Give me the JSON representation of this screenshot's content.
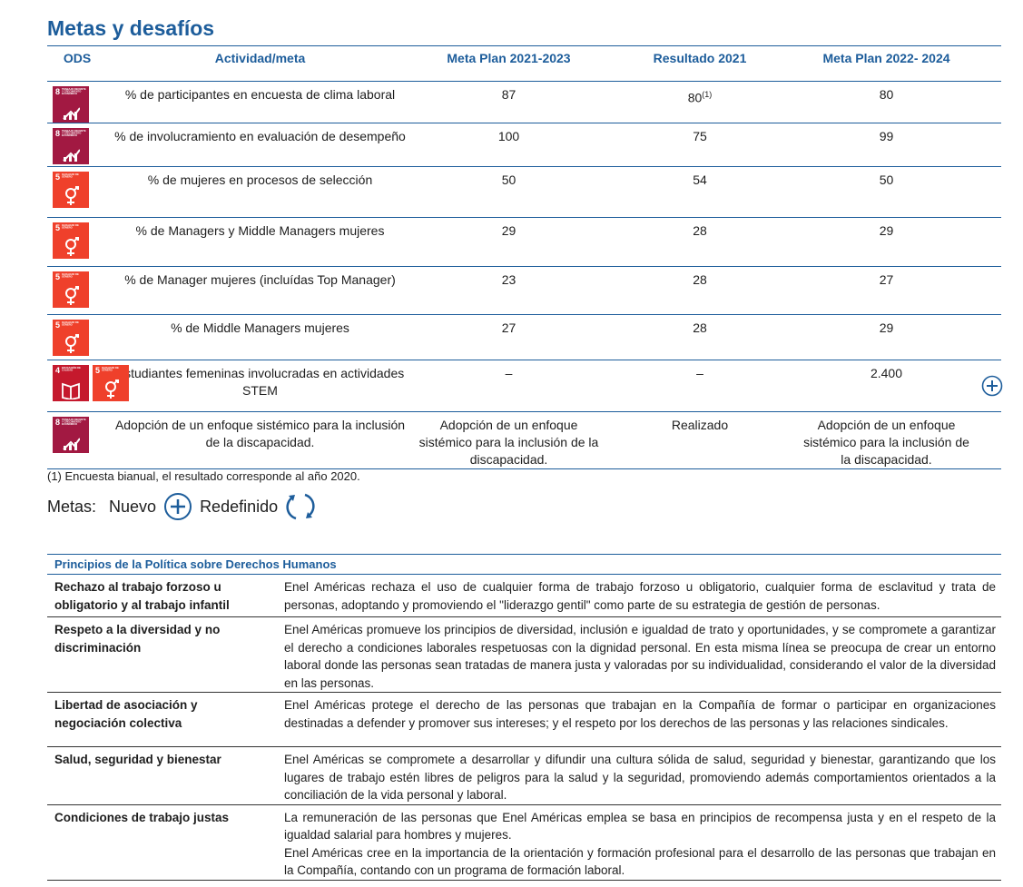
{
  "title": "Metas y desafíos",
  "goals_table": {
    "headers": [
      "ODS",
      "Actividad/meta",
      "Meta Plan 2021-2023",
      "Resultado 2021",
      "Meta Plan 2022- 2024"
    ],
    "rows": [
      {
        "ods": [
          {
            "number": "8",
            "label": "TRABAJO DECENTE Y CRECIMIENTO ECONÓMICO",
            "color": "#a21942"
          }
        ],
        "activity": "% de participantes en encuesta de clima laboral",
        "plan_2021_2023": "87",
        "result_2021": "80",
        "result_note": "(1)",
        "plan_2022_2024": "80",
        "is_new": false
      },
      {
        "ods": [
          {
            "number": "8",
            "label": "TRABAJO DECENTE Y CRECIMIENTO ECONÓMICO",
            "color": "#a21942"
          }
        ],
        "activity": "% de involucramiento en evaluación de desempeño",
        "plan_2021_2023": "100",
        "result_2021": "75",
        "plan_2022_2024": "99",
        "is_new": false
      },
      {
        "ods": [
          {
            "number": "5",
            "label": "IGUALDAD DE GÉNERO",
            "color": "#ef402b"
          }
        ],
        "activity": "% de mujeres en procesos de selección",
        "plan_2021_2023": "50",
        "result_2021": "54",
        "plan_2022_2024": "50",
        "is_new": false
      },
      {
        "ods": [
          {
            "number": "5",
            "label": "IGUALDAD DE GÉNERO",
            "color": "#ef402b"
          }
        ],
        "activity": "% de Managers y Middle Managers mujeres",
        "plan_2021_2023": "29",
        "result_2021": "28",
        "plan_2022_2024": "29",
        "is_new": false
      },
      {
        "ods": [
          {
            "number": "5",
            "label": "IGUALDAD DE GÉNERO",
            "color": "#ef402b"
          }
        ],
        "activity": "% de Manager mujeres (incluídas Top Manager)",
        "plan_2021_2023": "23",
        "result_2021": "28",
        "plan_2022_2024": "27",
        "is_new": false
      },
      {
        "ods": [
          {
            "number": "5",
            "label": "IGUALDAD DE GÉNERO",
            "color": "#ef402b"
          }
        ],
        "activity": "% de Middle Managers mujeres",
        "plan_2021_2023": "27",
        "result_2021": "28",
        "plan_2022_2024": "29",
        "is_new": false
      },
      {
        "ods": [
          {
            "number": "4",
            "label": "EDUCACIÓN DE CALIDAD",
            "color": "#c5192d"
          },
          {
            "number": "5",
            "label": "IGUALDAD DE GÉNERO",
            "color": "#ef402b"
          }
        ],
        "activity": "Estudiantes femeninas involucradas en actividades STEM",
        "plan_2021_2023": "–",
        "result_2021": "–",
        "plan_2022_2024": "2.400",
        "is_new": true
      },
      {
        "ods": [
          {
            "number": "8",
            "label": "TRABAJO DECENTE Y CRECIMIENTO ECONÓMICO",
            "color": "#a21942"
          }
        ],
        "activity": "Adopción de un enfoque sistémico para la inclusión de la discapacidad.",
        "plan_2021_2023": "Adopción de un enfoque sistémico para la inclusión de la discapacidad.",
        "result_2021": "Realizado",
        "plan_2022_2024": "Adopción de un enfoque sistémico para la inclusión de la discapacidad.",
        "is_new": false
      }
    ]
  },
  "footnote": "(1) Encuesta bianual, el resultado corresponde al año 2020.",
  "legend": {
    "label": "Metas:",
    "new": "Nuevo",
    "redefined": "Redefinido"
  },
  "principles_table": {
    "header": "Principios de la Política sobre Derechos Humanos",
    "rows": [
      {
        "name": "Rechazo al trabajo forzoso u obligatorio y al trabajo infantil",
        "description": [
          "Enel Américas rechaza el uso de cualquier forma de trabajo forzoso u obligatorio, cualquier forma de esclavitud y trata de personas, adoptando y promoviendo el \"liderazgo gentil\" como parte de su estrategia de gestión de personas."
        ]
      },
      {
        "name": "Respeto a la diversidad y no discriminación",
        "description": [
          "Enel Américas promueve los principios de diversidad, inclusión e igualdad de trato y oportunidades, y se compromete a garantizar el derecho a condiciones laborales respetuosas con la dignidad personal. En esta misma línea se preocupa de crear un entorno laboral donde las personas sean tratadas de manera justa y valoradas por su individualidad, considerando el valor de la diversidad en las personas."
        ]
      },
      {
        "name": "Libertad de asociación y negociación colectiva",
        "description": [
          "Enel Américas protege el derecho de las personas que trabajan en la Compañía de formar o participar en organizaciones destinadas a defender y promover sus intereses; y el respeto por los derechos de las personas y las relaciones sindicales."
        ]
      },
      {
        "name": "Salud, seguridad y bienestar",
        "description": [
          "Enel Américas se compromete a desarrollar y difundir una cultura sólida de salud, seguridad y bienestar, garantizando que los lugares de trabajo estén libres de peligros para la salud y la seguridad, promoviendo además comportamientos orientados a la conciliación de la vida personal y laboral."
        ]
      },
      {
        "name": "Condiciones de trabajo justas",
        "description": [
          "La remuneración de las personas que Enel Américas emplea se basa en principios de recompensa justa y en el respeto de la igualdad salarial para hombres y mujeres.",
          "Enel Américas cree en la importancia de la orientación y formación profesional para el desarrollo de las personas que trabajan en la Compañía, contando con un programa de formación laboral."
        ]
      }
    ]
  }
}
